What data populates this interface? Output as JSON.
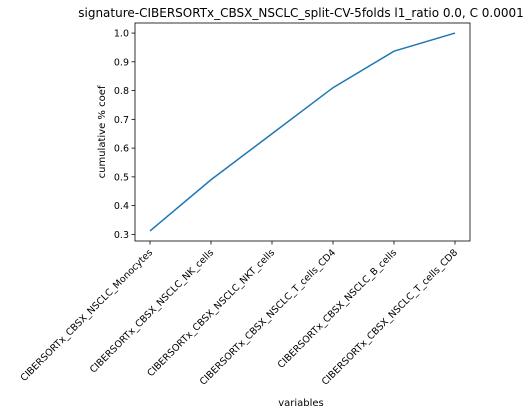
{
  "chart_data": {
    "type": "line",
    "title": "signature-CIBERSORTx_CBSX_NSCLC_split-CV-5folds l1_ratio 0.0, C 0.0001",
    "xlabel": "variables",
    "ylabel": "cumulative % coef",
    "categories": [
      "CIBERSORTx_CBSX_NSCLC_Monocytes",
      "CIBERSORTx_CBSX_NSCLC_NK_cells",
      "CIBERSORTx_CBSX_NSCLC_NKT_cells",
      "CIBERSORTx_CBSX_NSCLC_T_cells_CD4",
      "CIBERSORTx_CBSX_NSCLC_B_cells",
      "CIBERSORTx_CBSX_NSCLC_T_cells_CD8"
    ],
    "series": [
      {
        "values": [
          0.312,
          0.49,
          0.65,
          0.81,
          0.937,
          1.0
        ]
      }
    ],
    "yticks": [
      0.3,
      0.4,
      0.5,
      0.6,
      0.7,
      0.8,
      0.9,
      1.0
    ],
    "ytick_labels": [
      "0.3",
      "0.4",
      "0.5",
      "0.6",
      "0.7",
      "0.8",
      "0.9",
      "1.0"
    ],
    "ylim": [
      0.277,
      1.035
    ],
    "grid": false,
    "line_color": "#1f77b4"
  }
}
